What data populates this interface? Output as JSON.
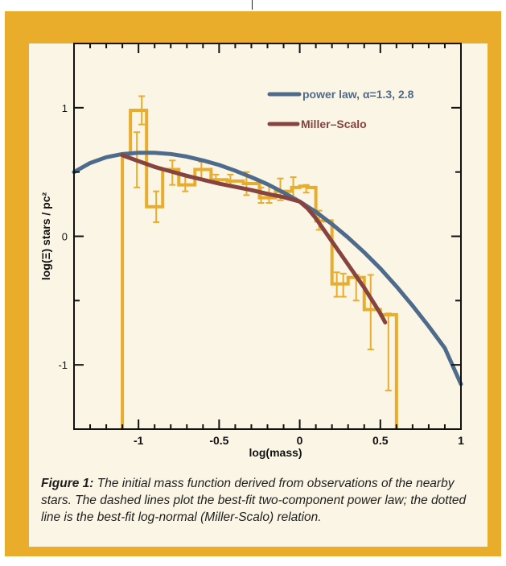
{
  "chart_data": {
    "type": "line",
    "xlabel": "log(mass)",
    "ylabel": "log(Ξ) stars / pc²",
    "xlim": [
      -1.4,
      1.0
    ],
    "ylim": [
      -1.5,
      1.5
    ],
    "x_ticks": [
      -1,
      -0.5,
      0,
      0.5,
      1
    ],
    "x_tick_labels": [
      "-1",
      "-0.5",
      "0",
      "0.5",
      "1"
    ],
    "y_ticks": [
      -1,
      0,
      1
    ],
    "y_tick_labels": [
      "-1",
      "0",
      "1"
    ],
    "grid": false,
    "legend_position": "top-right",
    "colors": {
      "histogram": "#e8ad2c",
      "power_law": "#4e6b8c",
      "miller_scalo": "#86433f"
    },
    "series": [
      {
        "name": "power law, α=1.3, 2.8",
        "kind": "curve",
        "x": [
          -1.4,
          -1.3,
          -1.2,
          -1.1,
          -1.0,
          -0.9,
          -0.8,
          -0.7,
          -0.6,
          -0.5,
          -0.4,
          -0.3,
          -0.2,
          -0.1,
          0.0,
          0.1,
          0.2,
          0.3,
          0.4,
          0.5,
          0.6,
          0.7,
          0.8,
          0.9,
          1.0
        ],
        "y": [
          0.5,
          0.57,
          0.615,
          0.64,
          0.65,
          0.65,
          0.64,
          0.62,
          0.59,
          0.555,
          0.51,
          0.46,
          0.405,
          0.34,
          0.27,
          0.19,
          0.095,
          -0.01,
          -0.125,
          -0.25,
          -0.39,
          -0.54,
          -0.7,
          -0.87,
          -1.15
        ]
      },
      {
        "name": "Miller–Scalo",
        "kind": "curve",
        "x": [
          -1.1,
          -1.0,
          -0.9,
          -0.8,
          -0.7,
          -0.6,
          -0.5,
          -0.4,
          -0.3,
          -0.2,
          -0.1,
          0.0,
          0.05,
          0.1,
          0.2,
          0.3,
          0.4,
          0.5,
          0.53
        ],
        "y": [
          0.63,
          0.585,
          0.54,
          0.505,
          0.47,
          0.44,
          0.41,
          0.385,
          0.36,
          0.33,
          0.305,
          0.27,
          0.215,
          0.14,
          -0.04,
          -0.22,
          -0.4,
          -0.6,
          -0.67
        ]
      },
      {
        "name": "",
        "kind": "histogram",
        "bin_edges": [
          -1.1,
          -1.05,
          -0.95,
          -0.85,
          -0.75,
          -0.65,
          -0.55,
          -0.45,
          -0.35,
          -0.25,
          -0.15,
          -0.05,
          0.0,
          0.05,
          0.1,
          0.2,
          0.3,
          0.4,
          0.5,
          0.6
        ],
        "values": [
          0.64,
          0.98,
          0.23,
          0.52,
          0.4,
          0.52,
          0.44,
          0.43,
          0.41,
          0.3,
          0.35,
          0.38,
          0.39,
          0.38,
          0.12,
          -0.37,
          -0.32,
          -0.57,
          -0.61
        ],
        "error_x": [
          -1.01,
          -0.98,
          -0.89,
          -0.79,
          -0.71,
          -0.61,
          -0.52,
          -0.43,
          -0.33,
          -0.24,
          -0.19,
          -0.12,
          -0.04,
          0.04,
          0.12,
          0.23,
          0.27,
          0.35,
          0.44,
          0.55
        ],
        "error_lo": [
          0.38,
          0.87,
          0.11,
          0.4,
          0.35,
          0.44,
          0.43,
          0.39,
          0.32,
          0.26,
          0.26,
          0.28,
          0.3,
          0.34,
          0.05,
          -0.47,
          -0.47,
          -0.5,
          -0.88,
          -1.2
        ],
        "error_hi": [
          0.81,
          1.09,
          0.35,
          0.59,
          0.48,
          0.58,
          0.48,
          0.48,
          0.5,
          0.38,
          0.4,
          0.45,
          0.46,
          0.4,
          0.2,
          -0.28,
          -0.29,
          -0.3,
          -0.3,
          -0.6
        ],
        "drop_left_to": -1.5,
        "drop_right_to": -1.5
      }
    ]
  },
  "caption": {
    "label": "Figure 1:",
    "text": "The initial mass function derived from observations of the nearby stars. The dashed lines plot the best-fit two-component power law; the dotted line is the best-fit log-normal (Miller-Scalo) relation."
  }
}
